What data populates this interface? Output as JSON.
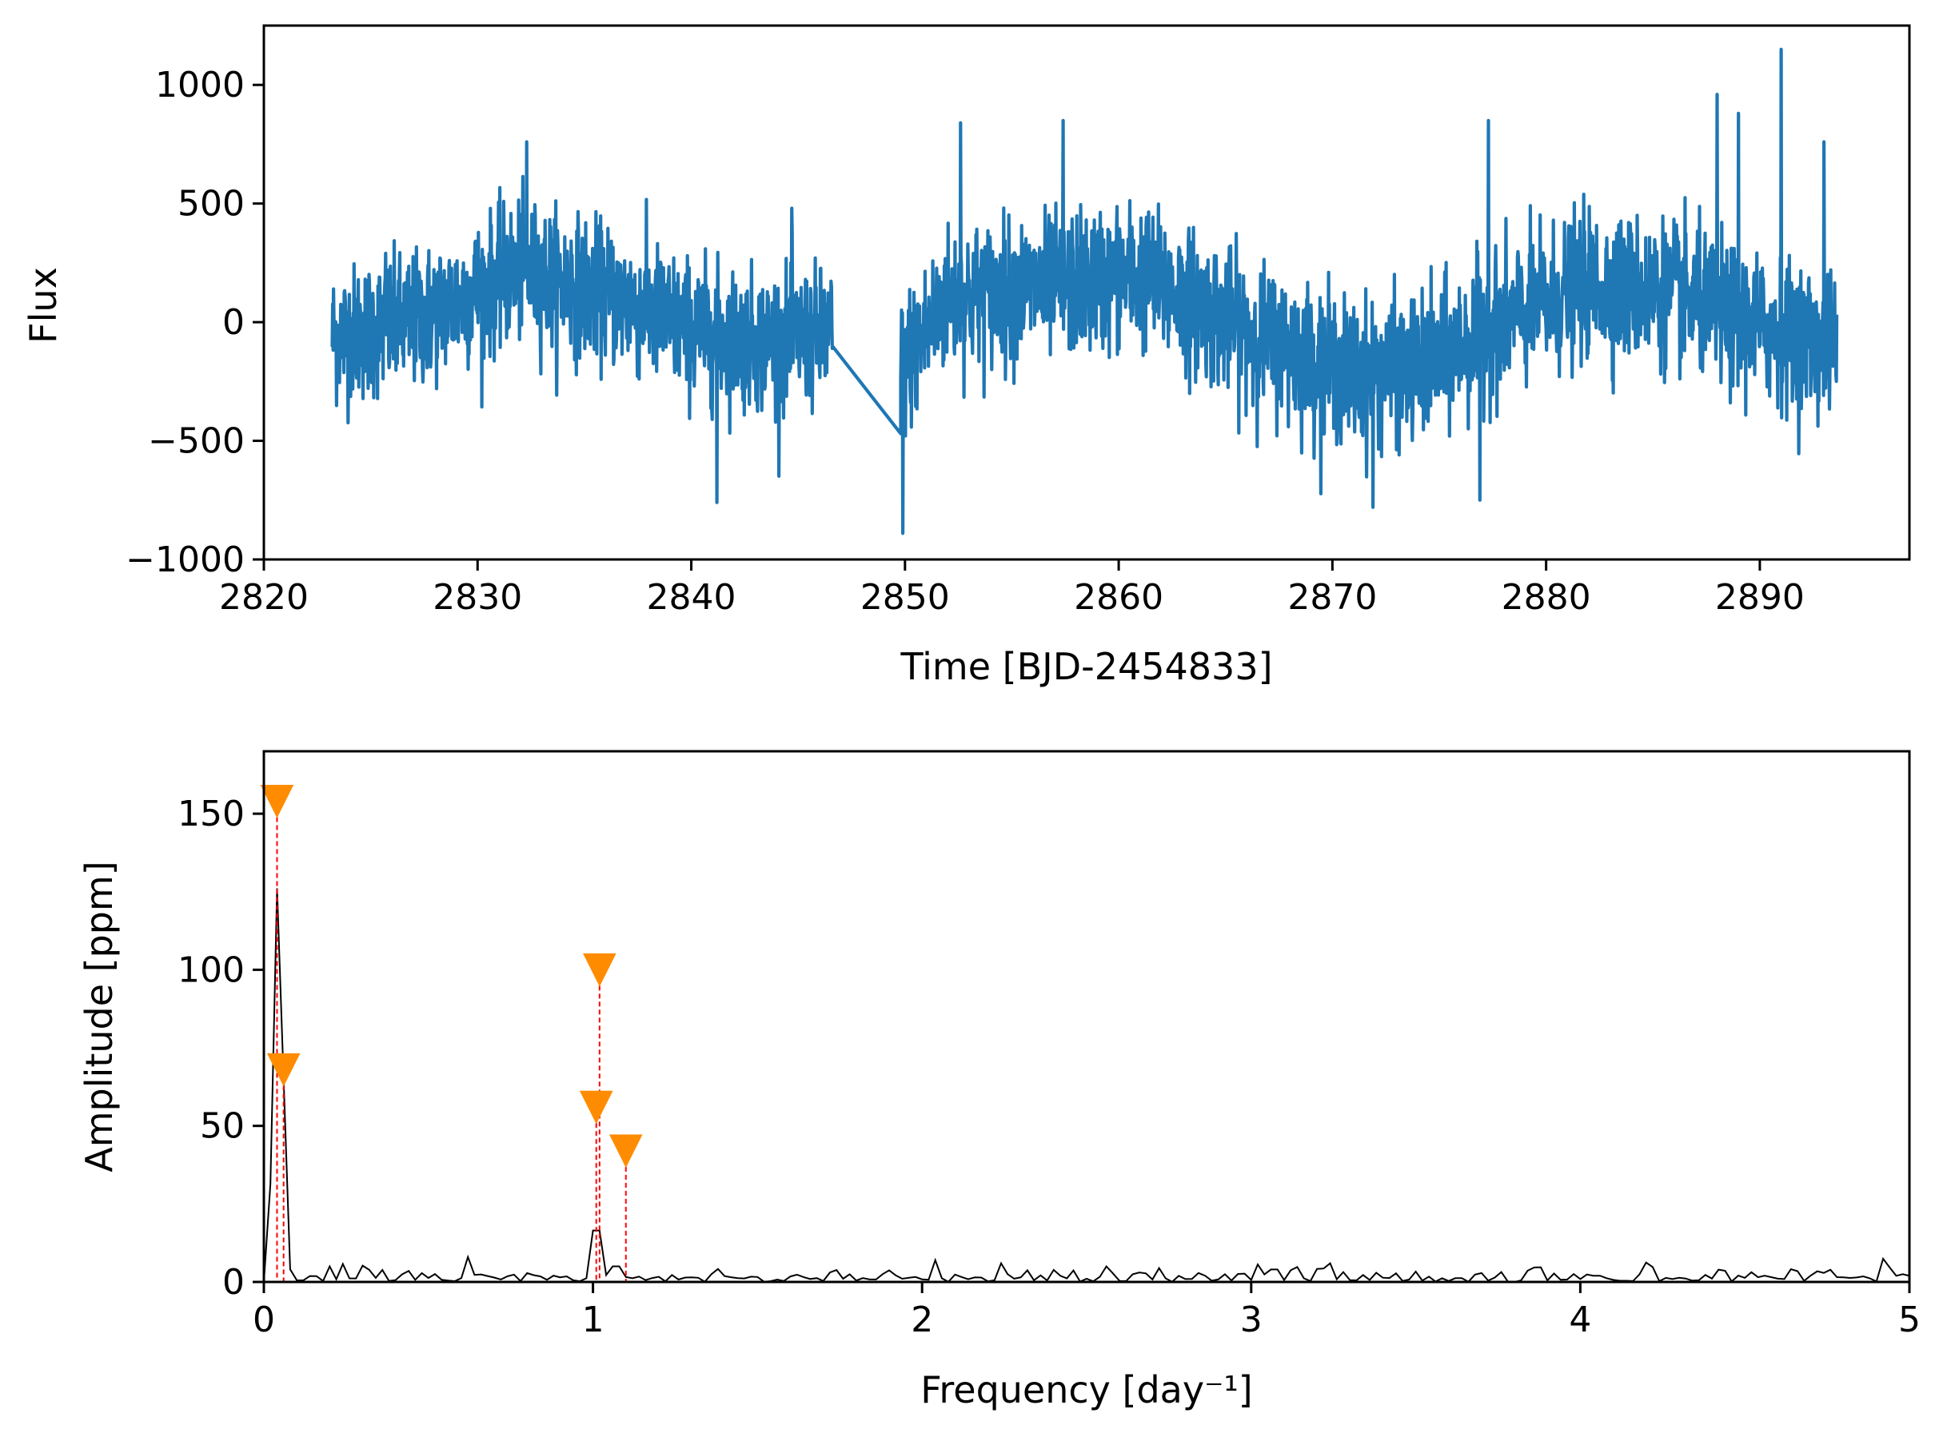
{
  "chart_data": [
    {
      "type": "line",
      "xlabel": "Time [BJD-2454833]",
      "ylabel": "Flux",
      "xlim": [
        2820,
        2897
      ],
      "ylim": [
        -1000,
        1250
      ],
      "xticks": [
        2820,
        2830,
        2840,
        2850,
        2860,
        2870,
        2880,
        2890
      ],
      "yticks": [
        -1000,
        -500,
        0,
        500,
        1000
      ],
      "xtick_labels": [
        "2820",
        "2830",
        "2840",
        "2850",
        "2860",
        "2870",
        "2880",
        "2890"
      ],
      "ytick_labels": [
        "−1000",
        "−500",
        "0",
        "500",
        "1000"
      ],
      "grid": false,
      "series": [
        {
          "color": "#1f77b4",
          "segments": [
            {
              "t_start": 2823.2,
              "t_end": 2846.6,
              "trend": [
                [
                  2823.2,
                  -60
                ],
                [
                  2827,
                  0
                ],
                [
                  2832,
                  220
                ],
                [
                  2836,
                  120
                ],
                [
                  2840,
                  -30
                ],
                [
                  2843,
                  -80
                ],
                [
                  2846.6,
                  -60
                ]
              ],
              "noise": 260,
              "spikes": [
                [
                  2832.3,
                  760
                ],
                [
                  2841.2,
                  -760
                ],
                [
                  2844.7,
                  480
                ],
                [
                  2825.7,
                  290
                ]
              ]
            },
            {
              "t_start": 2849.8,
              "t_end": 2893.6,
              "trend": [
                [
                  2849.8,
                  -200
                ],
                [
                  2852,
                  100
                ],
                [
                  2857,
                  150
                ],
                [
                  2861,
                  200
                ],
                [
                  2866,
                  -40
                ],
                [
                  2871,
                  -220
                ],
                [
                  2874,
                  -200
                ],
                [
                  2878,
                  0
                ],
                [
                  2882,
                  160
                ],
                [
                  2886,
                  120
                ],
                [
                  2889,
                  0
                ],
                [
                  2893.6,
                  -100
                ]
              ],
              "noise": 270,
              "spikes": [
                [
                  2849.9,
                  -890
                ],
                [
                  2852.6,
                  840
                ],
                [
                  2857.4,
                  850
                ],
                [
                  2871.9,
                  -780
                ],
                [
                  2876.9,
                  -750
                ],
                [
                  2877.3,
                  850
                ],
                [
                  2888.0,
                  960
                ],
                [
                  2891.0,
                  1150
                ],
                [
                  2889.0,
                  880
                ],
                [
                  2893.0,
                  760
                ]
              ]
            }
          ],
          "gap_connector": [
            [
              2846.6,
              -100
            ],
            [
              2849.8,
              -470
            ]
          ]
        }
      ]
    },
    {
      "type": "line",
      "xlabel": "Frequency [day⁻¹]",
      "ylabel": "Amplitude [ppm]",
      "xlim": [
        0,
        5
      ],
      "ylim": [
        0,
        170
      ],
      "xticks": [
        0,
        1,
        2,
        3,
        4,
        5
      ],
      "yticks": [
        0,
        50,
        100,
        150
      ],
      "xtick_labels": [
        "0",
        "1",
        "2",
        "3",
        "4",
        "5"
      ],
      "ytick_labels": [
        "0",
        "50",
        "100",
        "150"
      ],
      "grid": false,
      "series": [
        {
          "color": "#000000",
          "peaks": [
            [
              0.035,
              150
            ],
            [
              0.06,
              65
            ],
            [
              1.01,
              33
            ],
            [
              1.07,
              10
            ],
            [
              0.62,
              8
            ],
            [
              3.07,
              8
            ],
            [
              2.04,
              7
            ],
            [
              3.24,
              6
            ],
            [
              2.24,
              6
            ],
            [
              2.56,
              5
            ],
            [
              0.2,
              5
            ],
            [
              4.05,
              4
            ],
            [
              4.53,
              3
            ]
          ],
          "noise": 4
        }
      ],
      "markers": {
        "color": "#ff8c00",
        "line_color": "#ff0000",
        "points": [
          {
            "x": 0.04,
            "y": 154
          },
          {
            "x": 0.06,
            "y": 68
          },
          {
            "x": 1.02,
            "y": 100
          },
          {
            "x": 1.01,
            "y": 56
          },
          {
            "x": 1.1,
            "y": 42
          }
        ]
      }
    }
  ]
}
